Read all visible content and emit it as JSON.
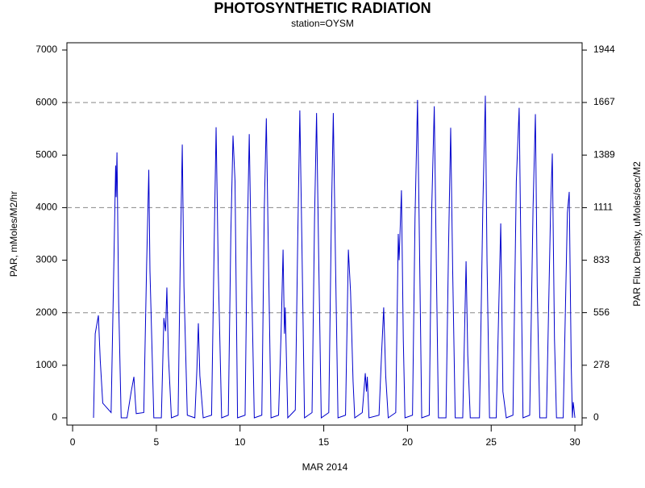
{
  "chart_data": {
    "type": "line",
    "title": "PHOTOSYNTHETIC RADIATION",
    "subtitle": "station=OYSM",
    "xlabel": "MAR 2014",
    "ylabel": "PAR, mMoles/M2/hr",
    "y2label": "PAR Flux Density, uMoles/sec/M2",
    "xlim": [
      -0.34,
      30.43
    ],
    "xticks": [
      0,
      5,
      10,
      15,
      20,
      25,
      30
    ],
    "ylim": [
      -138,
      7138
    ],
    "yticks": [
      0,
      1000,
      2000,
      3000,
      4000,
      5000,
      6000,
      7000
    ],
    "y2lim": [
      -38.3,
      1982.7
    ],
    "y2ticks": [
      0,
      278,
      556,
      833,
      1111,
      1389,
      1667,
      1944
    ],
    "ygrid": [
      2000,
      4000,
      6000
    ],
    "x": [
      1.25,
      1.35,
      1.54,
      1.65,
      1.8,
      2.3,
      2.45,
      2.57,
      2.6,
      2.65,
      2.75,
      2.9,
      3.25,
      3.5,
      3.66,
      3.75,
      3.8,
      4.25,
      4.42,
      4.55,
      4.62,
      4.85,
      5.3,
      5.45,
      5.55,
      5.63,
      5.72,
      5.9,
      6.3,
      6.42,
      6.55,
      6.65,
      6.85,
      7.3,
      7.42,
      7.51,
      7.6,
      7.8,
      8.3,
      8.45,
      8.57,
      8.7,
      8.9,
      9.3,
      9.45,
      9.58,
      9.7,
      9.85,
      10.3,
      10.42,
      10.55,
      10.68,
      10.85,
      11.3,
      11.45,
      11.57,
      11.7,
      11.85,
      12.3,
      12.45,
      12.57,
      12.65,
      12.7,
      12.85,
      13.3,
      13.45,
      13.57,
      13.7,
      13.85,
      14.3,
      14.45,
      14.57,
      14.7,
      14.85,
      15.3,
      15.45,
      15.57,
      15.7,
      15.85,
      16.3,
      16.47,
      16.6,
      16.75,
      16.85,
      17.3,
      17.48,
      17.55,
      17.6,
      17.7,
      18.3,
      18.45,
      18.58,
      18.7,
      18.85,
      19.3,
      19.45,
      19.5,
      19.64,
      19.75,
      19.85,
      20.3,
      20.45,
      20.6,
      20.72,
      20.85,
      21.3,
      21.45,
      21.6,
      21.72,
      21.85,
      22.3,
      22.45,
      22.58,
      22.7,
      22.85,
      23.3,
      23.5,
      23.6,
      23.75,
      24.3,
      24.5,
      24.65,
      24.75,
      24.9,
      25.3,
      25.57,
      25.7,
      25.9,
      26.3,
      26.5,
      26.67,
      26.8,
      26.9,
      27.3,
      27.5,
      27.64,
      27.75,
      27.9,
      28.3,
      28.55,
      28.65,
      28.78,
      28.9,
      29.3,
      29.55,
      29.66,
      29.78,
      29.85,
      29.9,
      30.0
    ],
    "series": [
      {
        "name": "PAR",
        "color": "#0000cc",
        "values": [
          0,
          1600,
          1950,
          1100,
          280,
          100,
          2700,
          4800,
          4200,
          5050,
          2200,
          0,
          0,
          500,
          780,
          300,
          80,
          100,
          2900,
          4720,
          2800,
          0,
          0,
          1900,
          1650,
          2480,
          1200,
          0,
          50,
          2800,
          5200,
          2500,
          50,
          0,
          900,
          1800,
          800,
          0,
          50,
          3200,
          5530,
          2800,
          0,
          50,
          3500,
          5370,
          4500,
          0,
          50,
          3200,
          5400,
          2800,
          0,
          50,
          4000,
          5700,
          3000,
          0,
          50,
          1600,
          3200,
          1600,
          2100,
          0,
          150,
          3500,
          5850,
          3200,
          0,
          100,
          3800,
          5800,
          3000,
          0,
          100,
          3700,
          5800,
          3000,
          0,
          50,
          3200,
          2400,
          700,
          0,
          100,
          850,
          500,
          780,
          0,
          50,
          1200,
          2100,
          800,
          0,
          100,
          3500,
          3000,
          4330,
          1500,
          0,
          50,
          3800,
          6050,
          3200,
          0,
          50,
          4000,
          5930,
          3000,
          0,
          0,
          3200,
          5520,
          2800,
          0,
          0,
          2980,
          1200,
          0,
          0,
          4000,
          6130,
          3000,
          0,
          0,
          3700,
          500,
          0,
          50,
          4500,
          5900,
          2500,
          0,
          50,
          4000,
          5780,
          2500,
          0,
          0,
          4000,
          5030,
          1500,
          0,
          0,
          3900,
          4300,
          1000,
          0,
          300,
          0
        ]
      }
    ]
  }
}
